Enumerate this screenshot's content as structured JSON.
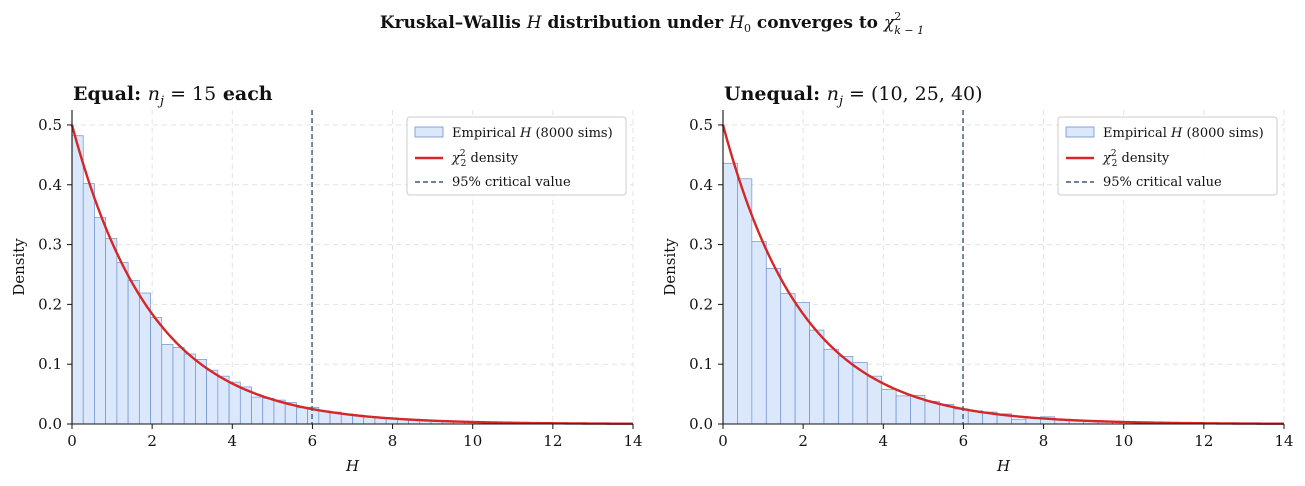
{
  "figure": {
    "title_prefix": "Kruskal–Wallis ",
    "title_h": "H",
    "title_mid": " distribution under ",
    "title_h0": "H",
    "title_h0_sub": "0",
    "title_after": " converges to ",
    "title_chi": "χ",
    "title_chi_sup": "2",
    "title_chi_sub": "k − 1"
  },
  "colors": {
    "bar_fill": "#dbe8fb",
    "bar_edge": "#6f8fcf",
    "density_line": "#d62728",
    "critical_line": "#3d5a7a",
    "grid": "#e3e3e3"
  },
  "chart_data": [
    {
      "type": "bar",
      "title_bold": "Equal: ",
      "title_math_var": "n",
      "title_math_sub": "j",
      "title_math_rest": " = 15",
      "title_bold_tail": " each",
      "xlabel": "H",
      "ylabel": "Density",
      "xlim": [
        0,
        14
      ],
      "ylim": [
        0,
        0.525
      ],
      "xticks": [
        0,
        2,
        4,
        6,
        8,
        10,
        12,
        14
      ],
      "yticks": [
        0.0,
        0.1,
        0.2,
        0.3,
        0.4,
        0.5
      ],
      "grid": true,
      "legend_placement": "top-right",
      "legend": {
        "hist_prefix": "Empirical ",
        "hist_var": "H",
        "hist_suffix": " (8000 sims)",
        "density_chi": "χ",
        "density_sup": "2",
        "density_sub": "2",
        "density_suffix": " density",
        "critical": "95% critical value"
      },
      "bin_width": 0.28,
      "hist_values": [
        0.482,
        0.402,
        0.345,
        0.31,
        0.27,
        0.24,
        0.219,
        0.178,
        0.133,
        0.128,
        0.117,
        0.108,
        0.09,
        0.08,
        0.07,
        0.062,
        0.045,
        0.043,
        0.04,
        0.036,
        0.027,
        0.028,
        0.022,
        0.02,
        0.017,
        0.015,
        0.012,
        0.011,
        0.01,
        0.009,
        0.008,
        0.007,
        0.006,
        0.005,
        0.004,
        0.004,
        0.003,
        0.003,
        0.002,
        0.002,
        0.002,
        0.001,
        0.001,
        0.001,
        0.001,
        0.001,
        0.001,
        0.0,
        0.0,
        0.0
      ],
      "density": {
        "df": 2
      },
      "critical_value": 5.99
    },
    {
      "type": "bar",
      "title_bold": "Unequal: ",
      "title_math_var": "n",
      "title_math_sub": "j",
      "title_math_rest": " = (10, 25, 40)",
      "title_bold_tail": "",
      "xlabel": "H",
      "ylabel": "Density",
      "xlim": [
        0,
        14
      ],
      "ylim": [
        0,
        0.525
      ],
      "xticks": [
        0,
        2,
        4,
        6,
        8,
        10,
        12,
        14
      ],
      "yticks": [
        0.0,
        0.1,
        0.2,
        0.3,
        0.4,
        0.5
      ],
      "grid": true,
      "legend_placement": "top-right",
      "legend": {
        "hist_prefix": "Empirical ",
        "hist_var": "H",
        "hist_suffix": " (8000 sims)",
        "density_chi": "χ",
        "density_sup": "2",
        "density_sub": "2",
        "density_suffix": " density",
        "critical": "95% critical value"
      },
      "bin_width": 0.36,
      "hist_values": [
        0.436,
        0.41,
        0.305,
        0.26,
        0.218,
        0.203,
        0.157,
        0.125,
        0.113,
        0.103,
        0.08,
        0.058,
        0.047,
        0.048,
        0.038,
        0.033,
        0.025,
        0.022,
        0.02,
        0.017,
        0.008,
        0.01,
        0.012,
        0.007,
        0.006,
        0.005,
        0.004,
        0.004,
        0.003,
        0.003,
        0.002,
        0.002,
        0.002,
        0.001,
        0.001,
        0.001,
        0.001,
        0.0,
        0.0
      ],
      "density": {
        "df": 2
      },
      "critical_value": 5.99
    }
  ]
}
